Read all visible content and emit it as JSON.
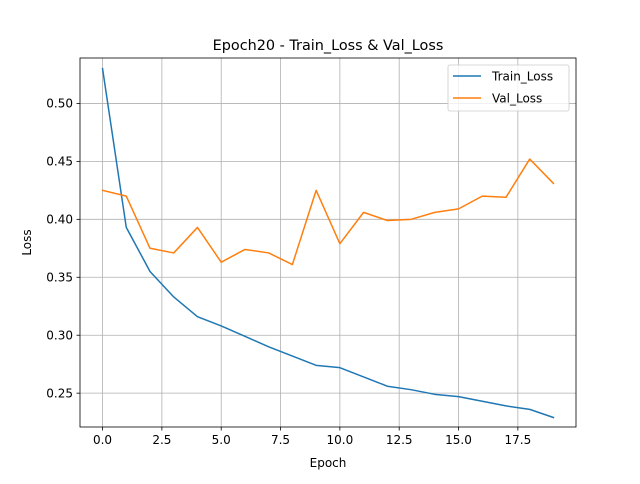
{
  "chart_data": {
    "type": "line",
    "title": "Epoch20 - Train_Loss & Val_Loss",
    "xlabel": "Epoch",
    "ylabel": "Loss",
    "xlim": [
      -0.95,
      19.95
    ],
    "ylim": [
      0.2208,
      0.5392
    ],
    "xticks": [
      0,
      2.5,
      5,
      7.5,
      10,
      12.5,
      15,
      17.5
    ],
    "xtick_labels": [
      "0.0",
      "2.5",
      "5.0",
      "7.5",
      "10.0",
      "12.5",
      "15.0",
      "17.5"
    ],
    "yticks": [
      0.25,
      0.3,
      0.35,
      0.4,
      0.45,
      0.5
    ],
    "ytick_labels": [
      "0.25",
      "0.30",
      "0.35",
      "0.40",
      "0.45",
      "0.50"
    ],
    "grid": true,
    "legend_position": "top-right",
    "x": [
      0,
      1,
      2,
      3,
      4,
      5,
      6,
      7,
      8,
      9,
      10,
      11,
      12,
      13,
      14,
      15,
      16,
      17,
      18,
      19
    ],
    "series": [
      {
        "name": "Train_Loss",
        "color": "#1f77b4",
        "values": [
          0.53,
          0.393,
          0.355,
          0.333,
          0.316,
          0.308,
          0.299,
          0.29,
          0.282,
          0.274,
          0.272,
          0.264,
          0.256,
          0.253,
          0.249,
          0.247,
          0.243,
          0.239,
          0.236,
          0.229
        ]
      },
      {
        "name": "Val_Loss",
        "color": "#ff7f0e",
        "values": [
          0.425,
          0.42,
          0.375,
          0.371,
          0.393,
          0.363,
          0.374,
          0.371,
          0.361,
          0.425,
          0.379,
          0.406,
          0.399,
          0.4,
          0.406,
          0.409,
          0.42,
          0.419,
          0.452,
          0.431
        ]
      }
    ]
  }
}
